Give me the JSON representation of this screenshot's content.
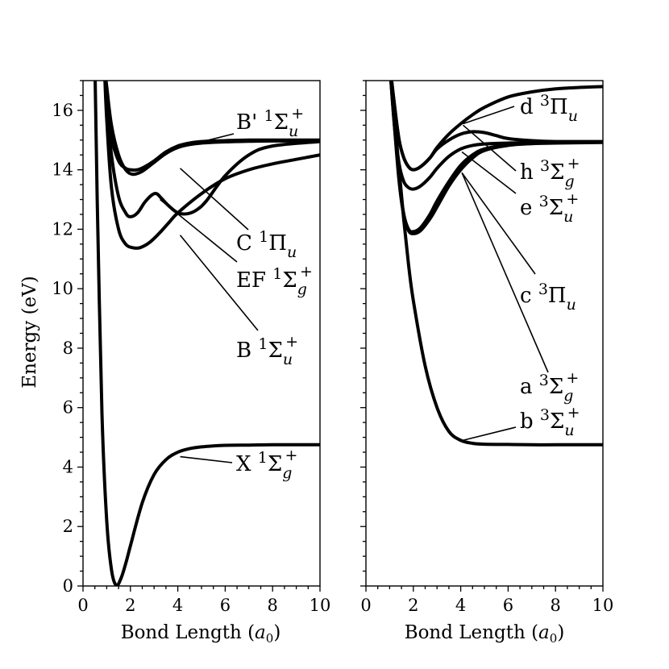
{
  "figure": {
    "ylabel": "Energy (eV)",
    "xlabel": "Bond Length (a₀)"
  },
  "chart_data": [
    {
      "type": "line",
      "panel": "left",
      "xlabel": "Bond Length (a₀)",
      "ylabel": "Energy (eV)",
      "xlim": [
        0,
        10
      ],
      "ylim": [
        0,
        17
      ],
      "xticks": [
        0,
        2,
        4,
        6,
        8,
        10
      ],
      "yticks": [
        0,
        2,
        4,
        6,
        8,
        10,
        12,
        14,
        16
      ],
      "grid": false,
      "series": [
        {
          "name": "X ¹Σg⁺",
          "x": [
            0.5,
            0.6,
            0.8,
            1.0,
            1.2,
            1.4,
            1.6,
            1.8,
            2.0,
            2.5,
            3.0,
            3.5,
            4.0,
            4.5,
            5.0,
            6.0,
            7.0,
            8.0,
            10.0
          ],
          "y": [
            17.6,
            13.0,
            5.8,
            2.2,
            0.55,
            0.02,
            0.25,
            0.75,
            1.35,
            2.8,
            3.75,
            4.25,
            4.5,
            4.62,
            4.68,
            4.73,
            4.74,
            4.75,
            4.75
          ]
        },
        {
          "name": "B ¹Σu⁺",
          "x": [
            0.9,
            1.0,
            1.2,
            1.5,
            1.8,
            2.1,
            2.4,
            2.8,
            3.2,
            3.6,
            4.0,
            5.0,
            6.0,
            7.0,
            8.0,
            9.0,
            10.0
          ],
          "y": [
            17.5,
            15.7,
            13.4,
            12.0,
            11.5,
            11.38,
            11.38,
            11.55,
            11.85,
            12.2,
            12.55,
            13.2,
            13.7,
            14.0,
            14.2,
            14.35,
            14.5
          ]
        },
        {
          "name": "EF ¹Σg⁺",
          "x": [
            0.9,
            1.0,
            1.2,
            1.5,
            1.8,
            2.0,
            2.3,
            2.6,
            2.9,
            3.1,
            3.3,
            3.6,
            4.0,
            4.4,
            4.8,
            5.2,
            6.0,
            7.0,
            8.0,
            10.0
          ],
          "y": [
            17.6,
            16.2,
            14.5,
            13.1,
            12.55,
            12.42,
            12.55,
            12.9,
            13.15,
            13.2,
            13.05,
            12.8,
            12.55,
            12.52,
            12.65,
            12.95,
            13.8,
            14.5,
            14.8,
            14.95
          ]
        },
        {
          "name": "C ¹Πu",
          "x": [
            0.9,
            1.0,
            1.2,
            1.5,
            1.8,
            2.0,
            2.3,
            2.6,
            3.0,
            3.5,
            4.0,
            4.5,
            5.0,
            6.0,
            7.0,
            8.0,
            10.0
          ],
          "y": [
            17.6,
            16.5,
            15.1,
            14.3,
            14.05,
            14.0,
            14.0,
            14.1,
            14.3,
            14.6,
            14.8,
            14.9,
            14.95,
            14.98,
            15.0,
            15.0,
            15.0
          ]
        },
        {
          "name": "B' ¹Σu⁺",
          "x": [
            0.9,
            1.0,
            1.2,
            1.5,
            1.8,
            2.1,
            2.5,
            3.0,
            3.5,
            4.0,
            4.5,
            5.0,
            6.0,
            7.0,
            8.0,
            10.0
          ],
          "y": [
            17.5,
            16.8,
            15.5,
            14.5,
            14.0,
            13.85,
            13.95,
            14.25,
            14.55,
            14.75,
            14.85,
            14.9,
            14.94,
            14.96,
            14.97,
            14.97
          ]
        }
      ]
    },
    {
      "type": "line",
      "panel": "right",
      "xlabel": "Bond Length (a₀)",
      "xlim": [
        0,
        10
      ],
      "ylim": [
        0,
        17
      ],
      "xticks": [
        0,
        2,
        4,
        6,
        8,
        10
      ],
      "grid": false,
      "series": [
        {
          "name": "b ³Σu⁺",
          "x": [
            1.0,
            1.2,
            1.4,
            1.6,
            1.8,
            2.0,
            2.5,
            3.0,
            3.5,
            4.0,
            4.5,
            5.0,
            6.0,
            7.0,
            8.0,
            10.0
          ],
          "y": [
            17.5,
            15.8,
            14.0,
            12.3,
            10.8,
            9.6,
            7.4,
            6.0,
            5.2,
            4.9,
            4.8,
            4.77,
            4.76,
            4.75,
            4.75,
            4.75
          ]
        },
        {
          "name": "a ³Σg⁺",
          "x": [
            1.0,
            1.2,
            1.4,
            1.6,
            1.8,
            2.0,
            2.3,
            2.7,
            3.0,
            3.5,
            4.0,
            4.5,
            5.0,
            6.0,
            7.0,
            8.0,
            10.0
          ],
          "y": [
            17.6,
            15.6,
            13.7,
            12.5,
            12.0,
            11.92,
            12.05,
            12.5,
            12.95,
            13.6,
            14.15,
            14.5,
            14.7,
            14.85,
            14.9,
            14.92,
            14.93
          ]
        },
        {
          "name": "c ³Πu",
          "x": [
            1.0,
            1.2,
            1.4,
            1.6,
            1.8,
            2.0,
            2.3,
            2.7,
            3.0,
            3.5,
            4.0,
            4.5,
            5.0,
            6.0,
            7.0,
            8.0,
            10.0
          ],
          "y": [
            17.6,
            15.5,
            13.6,
            12.45,
            11.95,
            11.85,
            11.95,
            12.35,
            12.75,
            13.45,
            14.0,
            14.4,
            14.65,
            14.82,
            14.88,
            14.9,
            14.92
          ]
        },
        {
          "name": "e ³Σu⁺",
          "x": [
            1.0,
            1.2,
            1.4,
            1.6,
            1.8,
            2.0,
            2.3,
            2.7,
            3.0,
            3.5,
            4.0,
            4.5,
            5.0,
            6.0,
            7.0,
            8.0,
            10.0
          ],
          "y": [
            17.6,
            15.5,
            14.2,
            13.6,
            13.4,
            13.35,
            13.45,
            13.75,
            14.05,
            14.45,
            14.7,
            14.82,
            14.87,
            14.9,
            14.92,
            14.93,
            14.93
          ]
        },
        {
          "name": "h ³Σg⁺",
          "x": [
            1.0,
            1.2,
            1.4,
            1.6,
            1.8,
            2.0,
            2.3,
            2.7,
            3.0,
            3.5,
            4.0,
            4.5,
            5.0,
            5.5,
            6.0,
            7.0,
            8.0,
            10.0
          ],
          "y": [
            17.6,
            16.2,
            15.0,
            14.4,
            14.1,
            14.0,
            14.1,
            14.4,
            14.7,
            15.0,
            15.2,
            15.28,
            15.25,
            15.15,
            15.05,
            14.98,
            14.95,
            14.95
          ]
        },
        {
          "name": "d ³Πu",
          "x": [
            1.0,
            1.2,
            1.4,
            1.6,
            1.8,
            2.0,
            2.3,
            2.7,
            3.0,
            3.5,
            4.0,
            4.5,
            5.0,
            6.0,
            7.0,
            8.0,
            9.0,
            10.0
          ],
          "y": [
            17.6,
            16.2,
            15.0,
            14.4,
            14.1,
            14.0,
            14.1,
            14.4,
            14.75,
            15.2,
            15.55,
            15.85,
            16.1,
            16.45,
            16.62,
            16.72,
            16.77,
            16.8
          ]
        }
      ]
    }
  ],
  "annotations": {
    "left": [
      {
        "series": "B' ¹Σu⁺",
        "base": "B'",
        "sup": "1",
        "sym": "Σ",
        "sub": "u",
        "sup2": "+",
        "at_x": 4.3,
        "at_y": 14.8
      },
      {
        "series": "C ¹Πu",
        "base": "C",
        "sup": "1",
        "sym": "Π",
        "sub": "u",
        "sup2": "",
        "at_x": 4.1,
        "at_y": 14.05
      },
      {
        "series": "EF ¹Σg⁺",
        "base": "EF",
        "sup": "1",
        "sym": "Σ",
        "sub": "g",
        "sup2": "+",
        "at_x": 3.25,
        "at_y": 13.0
      },
      {
        "series": "B ¹Σu⁺",
        "base": "B",
        "sup": "1",
        "sym": "Σ",
        "sub": "u",
        "sup2": "+",
        "at_x": 4.1,
        "at_y": 11.8
      },
      {
        "series": "X ¹Σg⁺",
        "base": "X",
        "sup": "1",
        "sym": "Σ",
        "sub": "g",
        "sup2": "+",
        "at_x": 4.1,
        "at_y": 4.35
      }
    ],
    "right": [
      {
        "series": "d ³Πu",
        "base": "d",
        "sup": "3",
        "sym": "Π",
        "sub": "u",
        "sup2": "",
        "at_x": 4.1,
        "at_y": 15.55
      },
      {
        "series": "h ³Σg⁺",
        "base": "h",
        "sup": "3",
        "sym": "Σ",
        "sub": "g",
        "sup2": "+",
        "at_x": 4.1,
        "at_y": 15.5
      },
      {
        "series": "e ³Σu⁺",
        "base": "e",
        "sup": "3",
        "sym": "Σ",
        "sub": "u",
        "sup2": "+",
        "at_x": 4.05,
        "at_y": 14.6
      },
      {
        "series": "c ³Πu",
        "base": "c",
        "sup": "3",
        "sym": "Π",
        "sub": "u",
        "sup2": "",
        "at_x": 4.05,
        "at_y": 13.9
      },
      {
        "series": "a ³Σg⁺",
        "base": "a",
        "sup": "3",
        "sym": "Σ",
        "sub": "g",
        "sup2": "+",
        "at_x": 4.05,
        "at_y": 13.9
      },
      {
        "series": "b ³Σu⁺",
        "base": "b",
        "sup": "3",
        "sym": "Σ",
        "sub": "u",
        "sup2": "+",
        "at_x": 4.1,
        "at_y": 4.9
      }
    ]
  }
}
